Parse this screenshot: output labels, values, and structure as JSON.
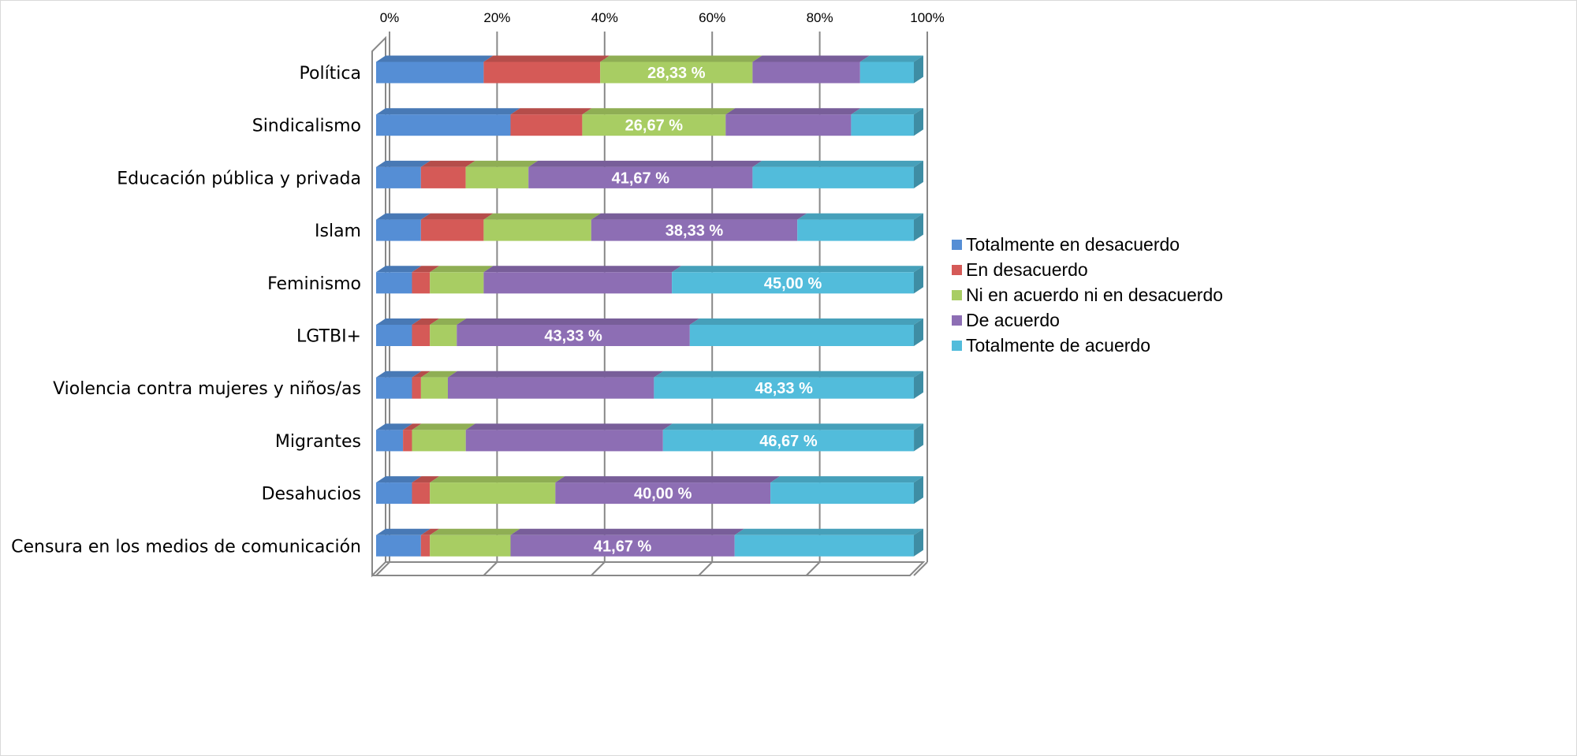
{
  "chart_data": {
    "type": "bar",
    "orientation": "horizontal",
    "stacked": "100%",
    "style": "3d",
    "categories": [
      "Política",
      "Sindicalismo",
      "Educación pública y privada",
      "Islam",
      "Feminismo",
      "LGTBI+",
      "Violencia contra mujeres y niños/as",
      "Migrantes",
      "Desahucios",
      "Censura en los medios de comunicación"
    ],
    "series": [
      {
        "name": "Totalmente en desacuerdo",
        "color": "#558ed5",
        "values": [
          20,
          25,
          8.33,
          8.33,
          6.67,
          6.67,
          6.67,
          5,
          6.67,
          8.33
        ]
      },
      {
        "name": "En desacuerdo",
        "color": "#d55a57",
        "values": [
          21.67,
          13.33,
          8.33,
          11.67,
          3.33,
          3.33,
          1.67,
          1.67,
          3.33,
          1.67
        ]
      },
      {
        "name": "Ni en acuerdo ni en desacuerdo",
        "color": "#a8cd63",
        "values": [
          28.33,
          26.67,
          11.67,
          20,
          10,
          5,
          5,
          10,
          23.33,
          15
        ]
      },
      {
        "name": "De acuerdo",
        "color": "#8d6eb4",
        "values": [
          20,
          23.33,
          41.67,
          38.33,
          35,
          43.33,
          38.33,
          36.67,
          40,
          41.67
        ]
      },
      {
        "name": "Totalmente de acuerdo",
        "color": "#52bcdb",
        "values": [
          10,
          11.67,
          30,
          21.67,
          45,
          41.67,
          48.33,
          46.67,
          26.67,
          33.33
        ]
      }
    ],
    "data_labels": [
      "28,33 %",
      "26,67 %",
      "41,67 %",
      "38,33 %",
      "45,00 %",
      "43,33 %",
      "48,33 %",
      "46,67 %",
      "40,00 %",
      "41,67 %"
    ],
    "data_label_series": [
      2,
      2,
      3,
      3,
      4,
      3,
      4,
      4,
      3,
      3
    ],
    "x_ticks": [
      "0%",
      "20%",
      "40%",
      "60%",
      "80%",
      "100%"
    ],
    "xlim": [
      0,
      100
    ],
    "axis_position": "top",
    "grid": true,
    "legend_position": "right"
  }
}
